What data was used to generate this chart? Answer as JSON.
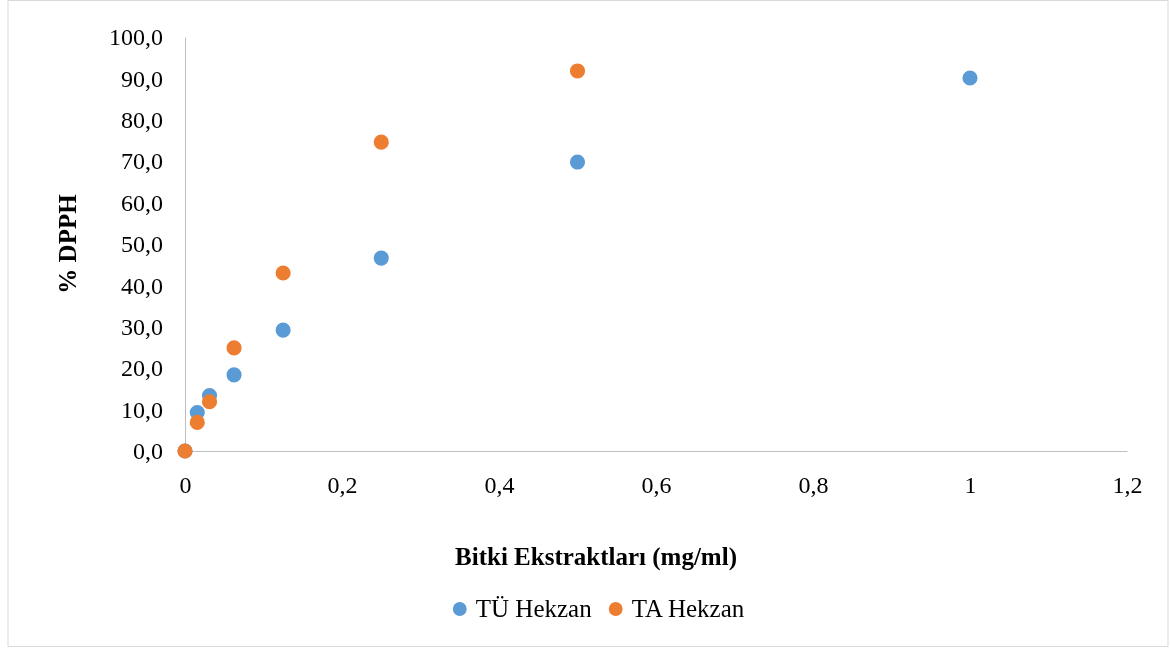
{
  "chart_data": {
    "type": "scatter",
    "xlabel": "Bitki Ekstraktları (mg/ml)",
    "ylabel": "% DPPH",
    "xlim": [
      0,
      1.2
    ],
    "xticks": [
      0,
      {
        "value": 0.2,
        "label": "0,2"
      },
      {
        "value": 0.4,
        "label": "0,4"
      },
      {
        "value": 0.6,
        "label": "0,6"
      },
      {
        "value": 0.8,
        "label": "0,8"
      },
      1,
      {
        "value": 1.2,
        "label": "1,2"
      }
    ],
    "ylim": [
      0,
      100
    ],
    "yticks": [
      {
        "value": 0,
        "label": "0,0"
      },
      {
        "value": 10,
        "label": "10,0"
      },
      {
        "value": 20,
        "label": "20,0"
      },
      {
        "value": 30,
        "label": "30,0"
      },
      {
        "value": 40,
        "label": "40,0"
      },
      {
        "value": 50,
        "label": "50,0"
      },
      {
        "value": 60,
        "label": "60,0"
      },
      {
        "value": 70,
        "label": "70,0"
      },
      {
        "value": 80,
        "label": "80,0"
      },
      {
        "value": 90,
        "label": "90,0"
      },
      {
        "value": 100,
        "label": "100,0"
      }
    ],
    "legend": "bottom",
    "marker": "circle",
    "series": [
      {
        "name": "TÜ Hekzan",
        "color": "#5b9bd5",
        "x": [
          0,
          0.015625,
          0.03125,
          0.0625,
          0.125,
          0.25,
          0.5,
          1
        ],
        "values": [
          0,
          9.3,
          13.4,
          18.4,
          29.2,
          46.6,
          69.8,
          90.1
        ]
      },
      {
        "name": "TA Hekzan",
        "color": "#ed7d31",
        "x": [
          0,
          0.015625,
          0.03125,
          0.0625,
          0.125,
          0.25,
          0.5
        ],
        "values": [
          0,
          6.9,
          11.9,
          24.9,
          43.0,
          74.6,
          91.8
        ]
      }
    ]
  }
}
